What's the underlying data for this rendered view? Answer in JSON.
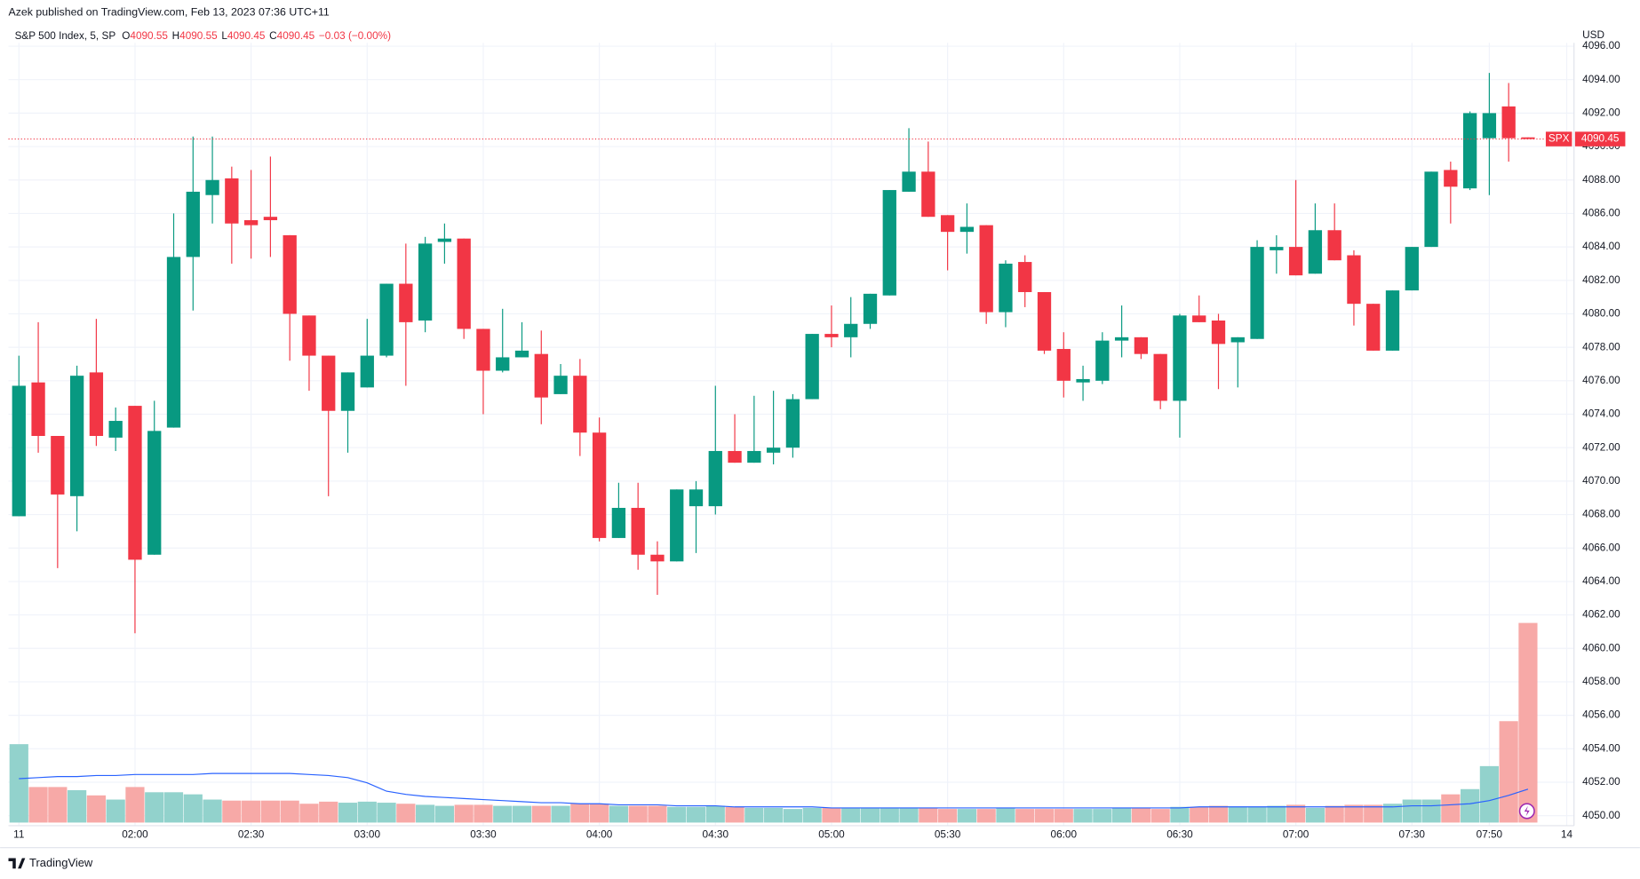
{
  "header": {
    "published": "Azek published on TradingView.com, Feb 13, 2023 07:36 UTC+11",
    "footer": "TradingView"
  },
  "chart_data": {
    "type": "candlestick",
    "symbol": "S&P 500 Index, 5, SP",
    "legend": [
      {
        "key": "O",
        "value": "4090.55"
      },
      {
        "key": "H",
        "value": "4090.55"
      },
      {
        "key": "L",
        "value": "4090.45"
      },
      {
        "key": "C",
        "value": "4090.45"
      }
    ],
    "change": "−0.03 (−0.00%)",
    "currency": "USD",
    "price_tag_symbol": "SPX",
    "price_tag": "4090.45",
    "up_color": "#089981",
    "down_color": "#f23645",
    "volume_up_color": "#92d2cc",
    "volume_down_color": "#f7a9a7",
    "volume_ma_color": "#2962ff",
    "grid": true,
    "categories": [
      "11",
      null,
      null,
      null,
      null,
      null,
      "02:00",
      null,
      null,
      null,
      null,
      null,
      "02:30",
      null,
      null,
      null,
      null,
      null,
      "03:00",
      null,
      null,
      null,
      null,
      null,
      "03:30",
      null,
      null,
      null,
      null,
      null,
      "04:00",
      null,
      null,
      null,
      null,
      null,
      "04:30",
      null,
      null,
      null,
      null,
      null,
      "05:00",
      null,
      null,
      null,
      null,
      null,
      "05:30",
      null,
      null,
      null,
      null,
      null,
      "06:00",
      null,
      null,
      null,
      null,
      null,
      "06:30",
      null,
      null,
      null,
      null,
      null,
      "07:00",
      null,
      null,
      null,
      null,
      null,
      "07:30",
      null,
      null,
      null,
      "07:50",
      null,
      null,
      null,
      "14"
    ],
    "open": [
      4067.9,
      4075.9,
      4072.7,
      4069.1,
      4076.5,
      4072.6,
      4074.5,
      4065.6,
      4073.2,
      4083.4,
      4087.1,
      4088.1,
      4085.6,
      4085.8,
      4084.7,
      4079.9,
      4077.5,
      4074.2,
      4075.6,
      4077.5,
      4081.8,
      4079.6,
      4084.3,
      4084.5,
      4079.1,
      4076.6,
      4077.4,
      4077.6,
      4075.2,
      4076.3,
      4072.9,
      4066.6,
      4068.4,
      4065.6,
      4065.2,
      4068.5,
      4068.5,
      4071.8,
      4071.1,
      4071.7,
      4072.0,
      4074.9,
      4078.8,
      4078.6,
      4079.4,
      4081.1,
      4087.3,
      4088.5,
      4085.9,
      4084.9,
      4085.3,
      4080.1,
      4083.1,
      4081.3,
      4077.9,
      4075.9,
      4076.0,
      4078.4,
      4078.6,
      4077.6,
      4074.8,
      4079.9,
      4079.6,
      4078.3,
      4078.5,
      4083.8,
      4084.0,
      4082.4,
      4085.0,
      4083.5,
      4080.6,
      4077.8,
      4081.4,
      4084.0,
      4088.6,
      4087.5,
      4090.5,
      4092.4,
      4090.55,
      null,
      null
    ],
    "high": [
      4077.5,
      4079.5,
      4072.7,
      4076.9,
      4079.7,
      4074.4,
      4074.5,
      4074.8,
      4086.0,
      4090.6,
      4090.6,
      4088.8,
      4088.6,
      4089.4,
      4084.7,
      4079.9,
      4077.5,
      4076.5,
      4079.7,
      4081.8,
      4084.2,
      4084.6,
      4085.4,
      4084.5,
      4079.1,
      4080.3,
      4079.5,
      4079.0,
      4077.0,
      4077.3,
      4073.8,
      4069.9,
      4069.9,
      4066.4,
      4069.5,
      4070.0,
      4075.7,
      4074.0,
      4075.1,
      4075.4,
      4075.2,
      4078.8,
      4080.5,
      4081.0,
      4081.2,
      4087.4,
      4091.1,
      4090.3,
      4085.9,
      4086.6,
      4085.3,
      4083.2,
      4083.5,
      4081.3,
      4078.9,
      4076.9,
      4078.9,
      4080.5,
      4078.6,
      4077.6,
      4080.0,
      4081.1,
      4080.0,
      4078.6,
      4084.4,
      4084.7,
      4088.0,
      4086.6,
      4086.6,
      4083.8,
      4080.6,
      4081.4,
      4084.0,
      4088.5,
      4089.1,
      4092.1,
      4094.4,
      4093.8,
      4090.55,
      null,
      null
    ],
    "low": [
      4067.9,
      4071.7,
      4064.8,
      4067.0,
      4072.1,
      4071.8,
      4060.9,
      4065.6,
      4073.2,
      4080.2,
      4085.4,
      4083.0,
      4083.3,
      4083.4,
      4077.2,
      4075.4,
      4069.1,
      4071.7,
      4075.6,
      4077.4,
      4075.7,
      4078.9,
      4083.0,
      4078.5,
      4074.0,
      4076.5,
      4077.4,
      4073.4,
      4075.2,
      4071.5,
      4066.4,
      4066.6,
      4064.7,
      4063.2,
      4065.2,
      4065.7,
      4068.0,
      4071.1,
      4071.1,
      4071.0,
      4071.4,
      4074.9,
      4078.0,
      4077.4,
      4079.1,
      4081.1,
      4087.3,
      4085.8,
      4082.6,
      4083.6,
      4079.4,
      4079.2,
      4080.4,
      4077.6,
      4075.0,
      4074.8,
      4075.8,
      4077.4,
      4077.3,
      4074.3,
      4072.6,
      4079.5,
      4075.5,
      4075.6,
      4078.5,
      4082.4,
      4082.3,
      4082.4,
      4083.2,
      4079.3,
      4077.8,
      4077.8,
      4081.4,
      4084.0,
      4085.4,
      4087.4,
      4087.1,
      4089.1,
      4090.45,
      null,
      null
    ],
    "close": [
      4075.7,
      4072.7,
      4069.2,
      4076.3,
      4072.7,
      4073.6,
      4065.3,
      4073.0,
      4083.4,
      4087.3,
      4088.0,
      4085.4,
      4085.3,
      4085.6,
      4080.0,
      4077.5,
      4074.2,
      4076.5,
      4077.5,
      4081.8,
      4079.5,
      4084.2,
      4084.5,
      4079.1,
      4076.6,
      4077.4,
      4077.8,
      4075.0,
      4076.3,
      4072.9,
      4066.6,
      4068.4,
      4065.6,
      4065.2,
      4069.5,
      4069.5,
      4071.8,
      4071.1,
      4071.8,
      4072.0,
      4074.9,
      4078.8,
      4078.6,
      4079.4,
      4081.2,
      4087.4,
      4088.5,
      4085.8,
      4084.9,
      4085.2,
      4080.1,
      4083.0,
      4081.3,
      4077.8,
      4076.0,
      4076.1,
      4078.4,
      4078.6,
      4077.6,
      4074.8,
      4079.9,
      4079.5,
      4078.2,
      4078.6,
      4084.0,
      4084.0,
      4082.3,
      4085.0,
      4083.2,
      4080.6,
      4077.8,
      4081.4,
      4084.0,
      4088.5,
      4087.6,
      4092.0,
      4092.0,
      4090.5,
      4090.45,
      null,
      null
    ],
    "volume": [
      75,
      34,
      34,
      31,
      26,
      22,
      34,
      29,
      29,
      27,
      22,
      21,
      21,
      21,
      21,
      18,
      20,
      19,
      20,
      19,
      18,
      17,
      16,
      17,
      17,
      16,
      16,
      16,
      16,
      18,
      18,
      16,
      16,
      16,
      15,
      15,
      16,
      15,
      14,
      14,
      13,
      14,
      14,
      14,
      14,
      14,
      14,
      14,
      13,
      13,
      13,
      14,
      13,
      13,
      13,
      13,
      13,
      14,
      14,
      13,
      15,
      15,
      16,
      15,
      15,
      16,
      17,
      14,
      16,
      17,
      17,
      18,
      22,
      22,
      27,
      32,
      54,
      97,
      191,
      null,
      null
    ],
    "volume_ma": [
      42,
      43,
      44,
      44,
      45,
      45,
      46,
      46,
      46,
      46,
      47,
      47,
      47,
      47,
      47,
      46,
      45,
      43,
      38,
      30,
      27,
      25,
      24,
      23,
      22,
      21,
      20,
      19,
      19,
      18,
      18,
      17,
      17,
      17,
      16,
      16,
      16,
      15,
      15,
      15,
      15,
      15,
      14,
      14,
      14,
      14,
      14,
      14,
      14,
      14,
      14,
      14,
      14,
      14,
      14,
      14,
      14,
      14,
      14,
      14,
      14,
      15,
      15,
      15,
      15,
      15,
      15,
      15,
      15,
      15,
      15,
      15,
      16,
      16,
      17,
      18,
      21,
      26,
      32,
      null,
      null
    ],
    "volume_ylim": [
      0,
      200
    ],
    "ylim": [
      4049.4,
      4096.2
    ],
    "yticks": [
      {
        "value": 4050,
        "label": "4050.00"
      },
      {
        "value": 4052,
        "label": "4052.00"
      },
      {
        "value": 4054,
        "label": "4054.00"
      },
      {
        "value": 4056,
        "label": "4056.00"
      },
      {
        "value": 4058,
        "label": "4058.00"
      },
      {
        "value": 4060,
        "label": "4060.00"
      },
      {
        "value": 4062,
        "label": "4062.00"
      },
      {
        "value": 4064,
        "label": "4064.00"
      },
      {
        "value": 4066,
        "label": "4066.00"
      },
      {
        "value": 4068,
        "label": "4068.00"
      },
      {
        "value": 4070,
        "label": "4070.00"
      },
      {
        "value": 4072,
        "label": "4072.00"
      },
      {
        "value": 4074,
        "label": "4074.00"
      },
      {
        "value": 4076,
        "label": "4076.00"
      },
      {
        "value": 4078,
        "label": "4078.00"
      },
      {
        "value": 4080,
        "label": "4080.00"
      },
      {
        "value": 4082,
        "label": "4082.00"
      },
      {
        "value": 4084,
        "label": "4084.00"
      },
      {
        "value": 4086,
        "label": "4086.00"
      },
      {
        "value": 4088,
        "label": "4088.00"
      },
      {
        "value": 4090,
        "label": "4090.00"
      },
      {
        "value": 4092,
        "label": "4092.00"
      },
      {
        "value": 4094,
        "label": "4094.00"
      },
      {
        "value": 4096,
        "label": "4096.00"
      }
    ]
  }
}
